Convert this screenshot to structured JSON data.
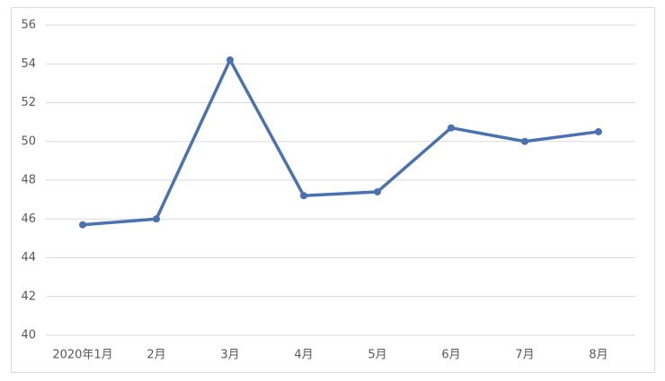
{
  "chart_data": {
    "type": "line",
    "categories": [
      "2020年1月",
      "2月",
      "3月",
      "4月",
      "5月",
      "6月",
      "7月",
      "8月"
    ],
    "series": [
      {
        "color": "#4a72b2",
        "values": [
          45.7,
          46.0,
          54.2,
          47.2,
          47.4,
          50.7,
          50.0,
          50.5
        ]
      }
    ],
    "ylim": [
      40,
      56
    ],
    "yticks": [
      40,
      42,
      44,
      46,
      48,
      50,
      52,
      54,
      56
    ],
    "grid": true
  }
}
